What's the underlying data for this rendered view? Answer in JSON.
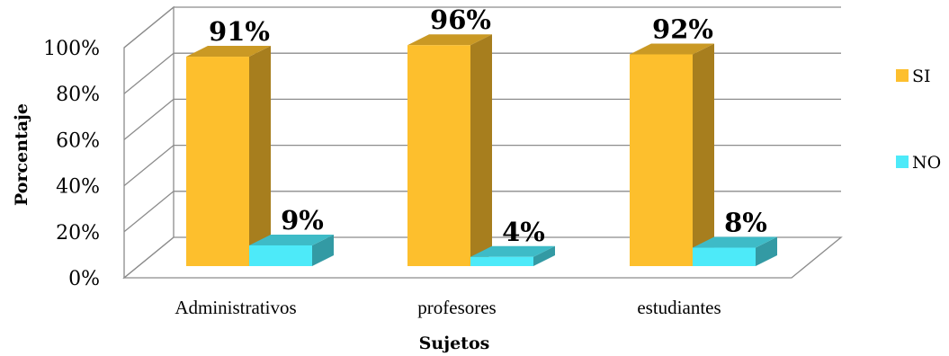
{
  "chart_data": {
    "type": "bar",
    "style": "3d-clustered-column",
    "categories": [
      "Administrativos",
      "profesores",
      "estudiantes"
    ],
    "series": [
      {
        "name": "SI",
        "values": [
          91,
          96,
          92
        ],
        "labels": [
          "91%",
          "96%",
          "92%"
        ],
        "color": "#FDBF2D"
      },
      {
        "name": "NO",
        "values": [
          9,
          4,
          8
        ],
        "labels": [
          "9%",
          "4%",
          "8%"
        ],
        "color": "#4DEAF9"
      }
    ],
    "ylabel": "Porcentaje",
    "xlabel": "Sujetos",
    "ylim": [
      0,
      100
    ],
    "yticks": [
      "0%",
      "20%",
      "40%",
      "60%",
      "80%",
      "100%"
    ],
    "grid": true,
    "legend": "right"
  }
}
